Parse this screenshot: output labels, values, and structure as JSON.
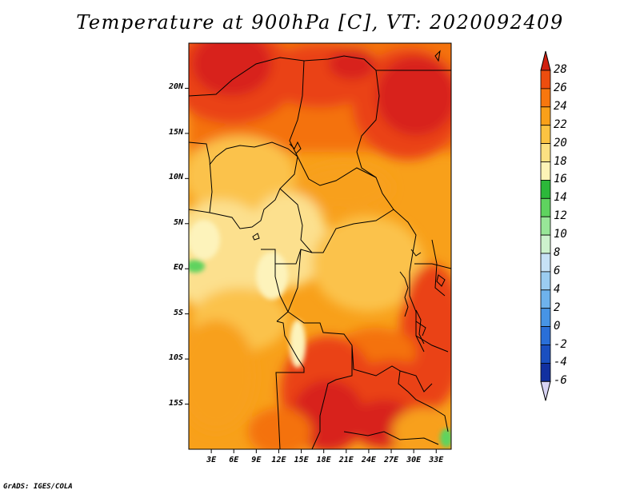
{
  "title": "Temperature at 900hPa [C], VT: 2020092409",
  "credit": "GrADS: IGES/COLA",
  "map": {
    "projection": "lat-lon",
    "lon_range": [
      0,
      35
    ],
    "lat_range": [
      -20,
      25
    ],
    "lat_ticks": [
      {
        "value": 20,
        "label": "20N"
      },
      {
        "value": 15,
        "label": "15N"
      },
      {
        "value": 10,
        "label": "10N"
      },
      {
        "value": 5,
        "label": "5N"
      },
      {
        "value": 0,
        "label": "EQ"
      },
      {
        "value": -5,
        "label": "5S"
      },
      {
        "value": -10,
        "label": "10S"
      },
      {
        "value": -15,
        "label": "15S"
      }
    ],
    "lon_ticks": [
      {
        "value": 3,
        "label": "3E"
      },
      {
        "value": 6,
        "label": "6E"
      },
      {
        "value": 9,
        "label": "9E"
      },
      {
        "value": 12,
        "label": "12E"
      },
      {
        "value": 15,
        "label": "15E"
      },
      {
        "value": 18,
        "label": "18E"
      },
      {
        "value": 21,
        "label": "21E"
      },
      {
        "value": 24,
        "label": "24E"
      },
      {
        "value": 27,
        "label": "27E"
      },
      {
        "value": 30,
        "label": "30E"
      },
      {
        "value": 33,
        "label": "33E"
      }
    ]
  },
  "colorbar": {
    "labels": [
      "28",
      "26",
      "24",
      "22",
      "20",
      "18",
      "16",
      "14",
      "12",
      "10",
      "8",
      "6",
      "4",
      "2",
      "0",
      "-2",
      "-4",
      "-6"
    ],
    "bin_colors_top_to_bottom": [
      "#dd2814",
      "#ed4d0e",
      "#f7770e",
      "#f9a019",
      "#fbc342",
      "#fce182",
      "#fdf4b7",
      "#2cb83a",
      "#5fd35f",
      "#98e698",
      "#cdf2cd",
      "#c7e2f6",
      "#9bccf1",
      "#6eb2ec",
      "#4794e5",
      "#2a6fd8",
      "#1a4fc0",
      "#1230a0",
      "#0a1870"
    ],
    "top_arrow_color": "#d02010",
    "bottom_arrow_color": "#d8d4f4"
  },
  "palette": {
    "t28": "#d8231a",
    "t26": "#ea4212",
    "t24": "#f4720f",
    "t22": "#f8a01a",
    "t20": "#fbc24b",
    "t18": "#fce08e",
    "t16": "#fdf3bb",
    "green": "#5fd35f"
  }
}
